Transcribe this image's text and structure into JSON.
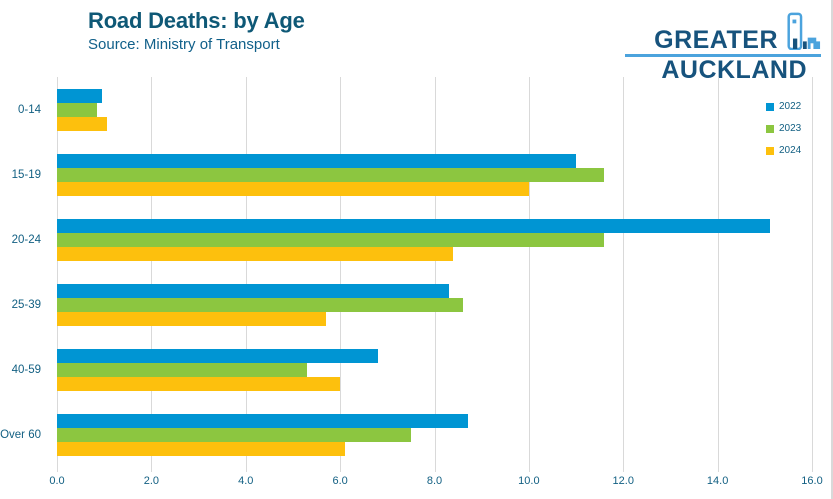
{
  "header": {
    "title": "Road Deaths: by Age",
    "subtitle": "Source: Ministry of Transport",
    "logo": {
      "line1": "GREATER",
      "line2": "AUCKLAND"
    }
  },
  "colors": {
    "title_text": "#0e5876",
    "axis_text": "#136083",
    "gridline": "#d9d9d9",
    "logo_dark": "#17537d",
    "logo_light": "#4ba3dd",
    "series_2022": "#0095d3",
    "series_2023": "#8cc640",
    "series_2024": "#fdc00d"
  },
  "chart_data": {
    "type": "bar",
    "orientation": "horizontal",
    "title": "Road Deaths: by Age",
    "subtitle": "Source: Ministry of Transport",
    "categories": [
      "0-14",
      "15-19",
      "20-24",
      "25-39",
      "40-59",
      "Over 60"
    ],
    "series": [
      {
        "name": "2022",
        "color": "#0095d3",
        "values": [
          0.95,
          11.0,
          15.1,
          8.3,
          6.8,
          8.7
        ]
      },
      {
        "name": "2023",
        "color": "#8cc640",
        "values": [
          0.85,
          11.6,
          11.6,
          8.6,
          5.3,
          7.5
        ]
      },
      {
        "name": "2024",
        "color": "#fdc00d",
        "values": [
          1.05,
          10.0,
          8.4,
          5.7,
          6.0,
          6.1
        ]
      }
    ],
    "xlim": [
      0,
      16
    ],
    "x_ticks": [
      "0.0",
      "2.0",
      "4.0",
      "6.0",
      "8.0",
      "10.0",
      "12.0",
      "14.0",
      "16.0"
    ],
    "grid": "vertical",
    "legend_position": "inside-top-right"
  }
}
